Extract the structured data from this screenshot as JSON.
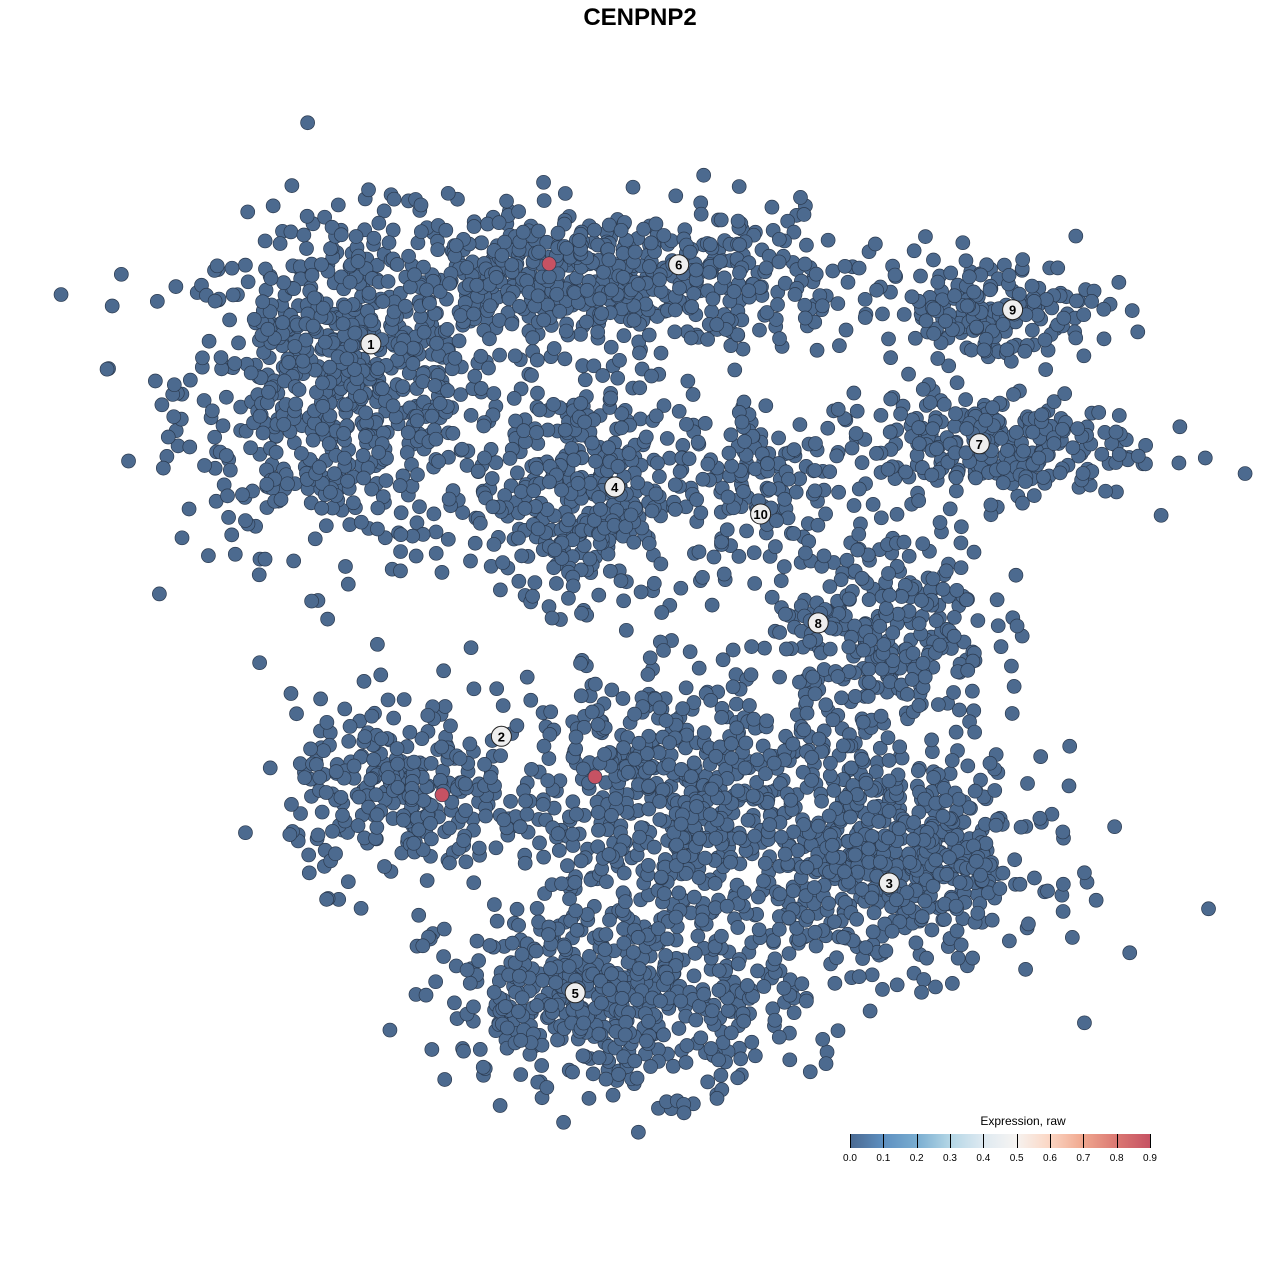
{
  "title": "CENPNP2",
  "chart_data": {
    "type": "scatter",
    "title": "CENPNP2",
    "xlabel": "",
    "ylabel": "",
    "axes_visible": false,
    "grid": false,
    "point_color_default": "#4c6a8f",
    "point_stroke": "#2b3a4f",
    "clusters": [
      {
        "label": "1",
        "label_pos": [
          -29.9,
          32.9
        ],
        "center": [
          -33,
          28
        ],
        "spread": [
          9,
          9
        ],
        "n": 700
      },
      {
        "label": "6",
        "label_pos": [
          4.3,
          41.7
        ],
        "center": [
          -5,
          40
        ],
        "spread": [
          14,
          4
        ],
        "n": 650
      },
      {
        "label": "4",
        "label_pos": [
          -2.8,
          17.0
        ],
        "center": [
          -6.7,
          16.7
        ],
        "spread": [
          6,
          6
        ],
        "n": 380
      },
      {
        "label": "10",
        "label_pos": [
          13.4,
          14.0
        ],
        "center": [
          13.5,
          17.5
        ],
        "spread": [
          4,
          5
        ],
        "n": 120
      },
      {
        "label": "9",
        "label_pos": [
          41.4,
          36.7
        ],
        "center": [
          38.9,
          36.7
        ],
        "spread": [
          6,
          3
        ],
        "n": 180
      },
      {
        "label": "7",
        "label_pos": [
          37.7,
          21.8
        ],
        "center": [
          37.5,
          21.5
        ],
        "spread": [
          9,
          3
        ],
        "n": 280
      },
      {
        "label": "8",
        "label_pos": [
          19.8,
          1.9
        ],
        "center": [
          27,
          2
        ],
        "spread": [
          6,
          6
        ],
        "n": 300
      },
      {
        "label": "2",
        "label_pos": [
          -15.4,
          -10.7
        ],
        "center": [
          -26.7,
          -17
        ],
        "spread": [
          6,
          5
        ],
        "n": 260
      },
      {
        "label": "3",
        "label_pos": [
          27.7,
          -27.0
        ],
        "center": [
          28.9,
          -24.4
        ],
        "spread": [
          8,
          6
        ],
        "n": 550
      },
      {
        "label": "5",
        "label_pos": [
          -7.2,
          -39.2
        ],
        "center": [
          -2.2,
          -40
        ],
        "spread": [
          10,
          5
        ],
        "n": 500
      },
      {
        "label": "",
        "label_pos": null,
        "center": [
          4.4,
          -18
        ],
        "spread": [
          11,
          8
        ],
        "n": 700
      }
    ],
    "highlighted_points": [
      {
        "x": -10.1,
        "y": 41.8,
        "value": 0.9
      },
      {
        "x": -5.0,
        "y": -15.2,
        "value": 0.9
      },
      {
        "x": -22.0,
        "y": -17.2,
        "value": 0.9
      }
    ],
    "default_value": 0.0,
    "colorbar": {
      "title": "Expression, raw",
      "range": [
        0.0,
        0.9
      ],
      "ticks": [
        "0.0",
        "0.1",
        "0.2",
        "0.3",
        "0.4",
        "0.5",
        "0.6",
        "0.7",
        "0.8",
        "0.9"
      ],
      "colors": [
        "#4a6991",
        "#5d8fc0",
        "#78acd0",
        "#b2d5e5",
        "#dde9f1",
        "#f6f4f2",
        "#fbd8c6",
        "#f1aa91",
        "#dc7b74",
        "#c65263"
      ],
      "placement": "bottom-right"
    }
  }
}
